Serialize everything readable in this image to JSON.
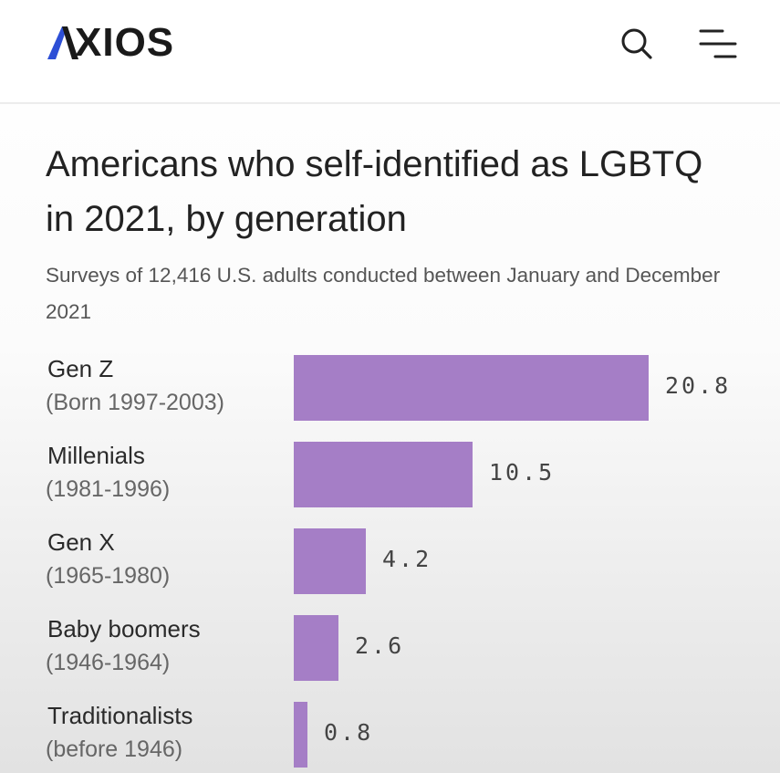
{
  "header": {
    "logo_text": "XIOS",
    "logo_full": "AXIOS",
    "search_icon": "search-icon",
    "menu_icon": "hamburger-menu-icon"
  },
  "article": {
    "title": "Americans who self-identified as LGBTQ in 2021, by generation",
    "subtitle": "Surveys of 12,416 U.S. adults conducted between January and December 2021"
  },
  "colors": {
    "bar": "#a57ec6",
    "logo_accent": "#2d4fd6"
  },
  "chart_data": {
    "type": "bar",
    "orientation": "horizontal",
    "title": "Americans who self-identified as LGBTQ in 2021, by generation",
    "subtitle": "Surveys of 12,416 U.S. adults conducted between January and December 2021",
    "categories": [
      {
        "name": "Gen Z",
        "years": "(Born 1997-2003)"
      },
      {
        "name": "Millenials",
        "years": "(1981-1996)"
      },
      {
        "name": "Gen X",
        "years": "(1965-1980)"
      },
      {
        "name": "Baby boomers",
        "years": "(1946-1964)"
      },
      {
        "name": "Traditionalists",
        "years": "(before 1946)"
      }
    ],
    "values": [
      20.8,
      10.5,
      4.2,
      2.6,
      0.8
    ],
    "value_labels": [
      "20.8",
      "10.5",
      "4.2",
      "2.6",
      "0.8"
    ],
    "xlim": [
      0,
      20.8
    ]
  }
}
